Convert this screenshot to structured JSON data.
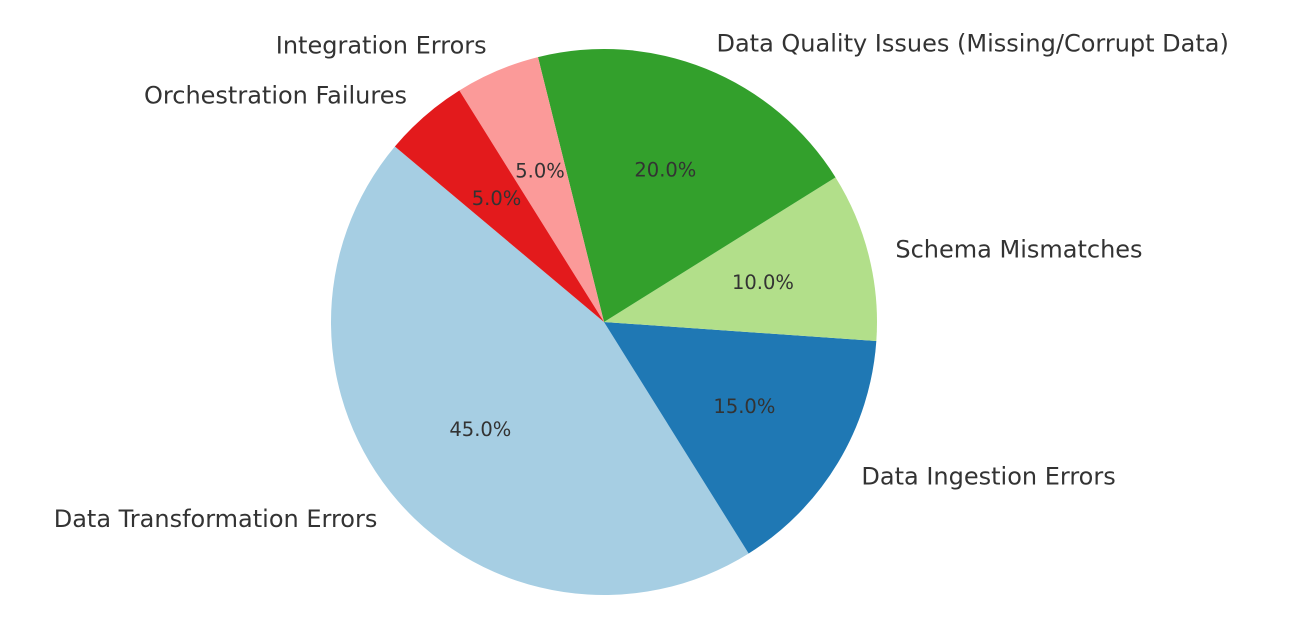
{
  "chart_data": {
    "type": "pie",
    "start_angle_deg": 140,
    "direction": "counterclockwise",
    "legend": "none",
    "slices": [
      {
        "label": "Data Transformation Errors",
        "value": 45,
        "pct_label": "45.0%",
        "color": "#a6cee3"
      },
      {
        "label": "Data Ingestion Errors",
        "value": 15,
        "pct_label": "15.0%",
        "color": "#1f78b4"
      },
      {
        "label": "Schema Mismatches",
        "value": 10,
        "pct_label": "10.0%",
        "color": "#b2df8a"
      },
      {
        "label": "Data Quality Issues (Missing/Corrupt Data)",
        "value": 20,
        "pct_label": "20.0%",
        "color": "#33a02c"
      },
      {
        "label": "Integration Errors",
        "value": 5,
        "pct_label": "5.0%",
        "color": "#fb9a99"
      },
      {
        "label": "Orchestration Failures",
        "value": 5,
        "pct_label": "5.0%",
        "color": "#e31a1c"
      }
    ]
  }
}
